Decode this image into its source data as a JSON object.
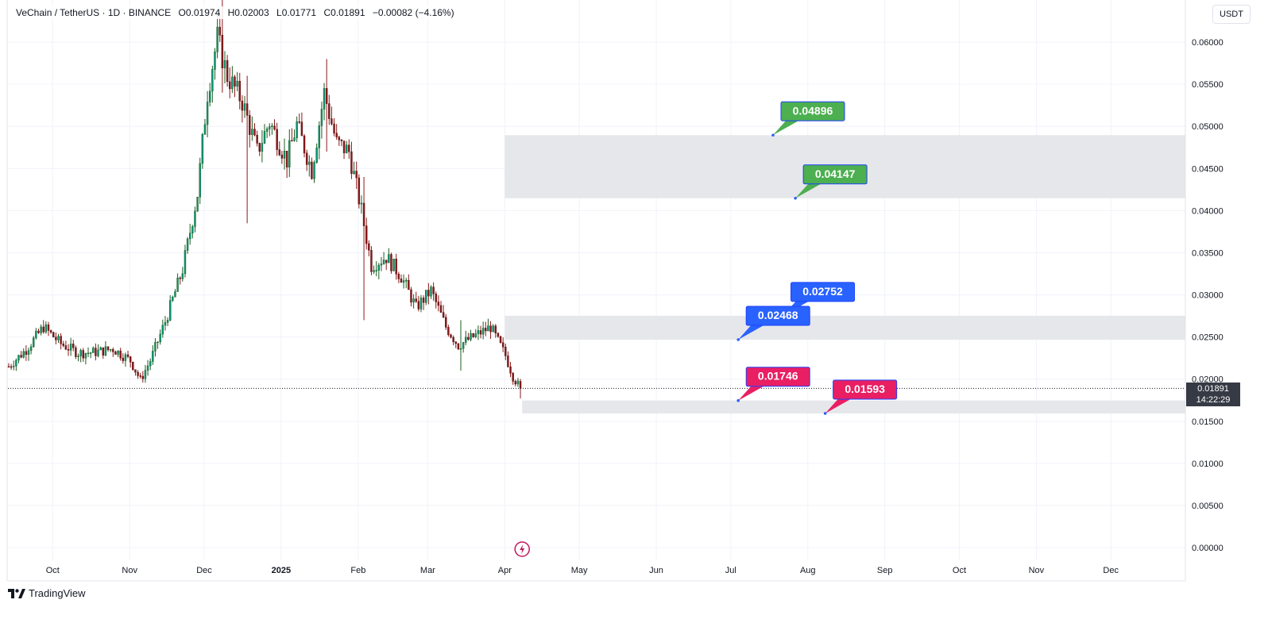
{
  "legend": {
    "symbol": "VeChain / TetherUS · 1D · BINANCE",
    "open_label": "O",
    "open": "0.01974",
    "high_label": "H",
    "high": "0.02003",
    "low_label": "L",
    "low": "0.01771",
    "close_label": "C",
    "close": "0.01891",
    "change": "−0.00082 (−4.16%)"
  },
  "currency": "USDT",
  "last_price": {
    "value": "0.01891",
    "countdown": "14:22:29"
  },
  "footer": {
    "brand": "TradingView"
  },
  "colors": {
    "up": "#089981",
    "down": "#f23645",
    "candle_body_down": "#8b1a1a",
    "zone": "#e6e7ea",
    "green_label": "#4caf50",
    "blue_label": "#2962ff",
    "pink_label": "#e91e63",
    "grid": "#f0f3fa",
    "text": "#131722"
  },
  "chart_data": {
    "type": "candlestick",
    "ylim": [
      -0.0015,
      0.065
    ],
    "yticks": [
      "0.06000",
      "0.05500",
      "0.05000",
      "0.04500",
      "0.04000",
      "0.03500",
      "0.03000",
      "0.02500",
      "0.02000",
      "0.01500",
      "0.01000",
      "0.00500",
      "0.00000"
    ],
    "ytick_values": [
      0.06,
      0.055,
      0.05,
      0.045,
      0.04,
      0.035,
      0.03,
      0.025,
      0.02,
      0.015,
      0.01,
      0.005,
      0.0
    ],
    "xticks": [
      "Oct",
      "Nov",
      "Dec",
      "2025",
      "Feb",
      "Mar",
      "Apr",
      "May",
      "Jun",
      "Jul",
      "Aug",
      "Sep",
      "Oct",
      "Nov",
      "Dec"
    ],
    "xtick_dates": [
      "2024-10-01",
      "2024-11-01",
      "2024-12-01",
      "2025-01-01",
      "2025-02-01",
      "2025-03-01",
      "2025-04-01",
      "2025-05-01",
      "2025-06-01",
      "2025-07-01",
      "2025-08-01",
      "2025-09-01",
      "2025-10-01",
      "2025-11-01",
      "2025-12-01"
    ],
    "date_range": [
      "2024-09-13",
      "2025-12-31"
    ],
    "close_path": [
      [
        "2024-09-13",
        0.0215
      ],
      [
        "2024-09-20",
        0.0235
      ],
      [
        "2024-09-27",
        0.0262
      ],
      [
        "2024-10-04",
        0.0242
      ],
      [
        "2024-10-11",
        0.0231
      ],
      [
        "2024-10-18",
        0.0232
      ],
      [
        "2024-10-25",
        0.0236
      ],
      [
        "2024-11-01",
        0.0222
      ],
      [
        "2024-11-05",
        0.0199
      ],
      [
        "2024-11-09",
        0.0222
      ],
      [
        "2024-11-15",
        0.0268
      ],
      [
        "2024-11-22",
        0.033
      ],
      [
        "2024-11-28",
        0.042
      ],
      [
        "2024-12-02",
        0.054
      ],
      [
        "2024-12-06",
        0.0605
      ],
      [
        "2024-12-10",
        0.056
      ],
      [
        "2024-12-16",
        0.053
      ],
      [
        "2024-12-22",
        0.047
      ],
      [
        "2024-12-27",
        0.0505
      ],
      [
        "2025-01-03",
        0.046
      ],
      [
        "2025-01-07",
        0.0502
      ],
      [
        "2025-01-13",
        0.0448
      ],
      [
        "2025-01-18",
        0.054
      ],
      [
        "2025-01-23",
        0.048
      ],
      [
        "2025-01-28",
        0.047
      ],
      [
        "2025-02-02",
        0.04
      ],
      [
        "2025-02-06",
        0.0335
      ],
      [
        "2025-02-12",
        0.0345
      ],
      [
        "2025-02-18",
        0.0322
      ],
      [
        "2025-02-24",
        0.0285
      ],
      [
        "2025-03-02",
        0.0305
      ],
      [
        "2025-03-08",
        0.0262
      ],
      [
        "2025-03-13",
        0.024
      ],
      [
        "2025-03-20",
        0.0252
      ],
      [
        "2025-03-26",
        0.0262
      ],
      [
        "2025-04-01",
        0.0228
      ],
      [
        "2025-04-04",
        0.0203
      ],
      [
        "2025-04-07",
        0.0189
      ]
    ],
    "wicks": [
      [
        "2024-12-08",
        0.065,
        0.054
      ],
      [
        "2024-12-18",
        0.056,
        0.0385
      ],
      [
        "2025-01-19",
        0.058,
        0.047
      ],
      [
        "2025-02-03",
        0.044,
        0.027
      ],
      [
        "2025-04-07",
        0.02,
        0.0177
      ],
      [
        "2025-03-14",
        0.027,
        0.021
      ]
    ],
    "zones": [
      {
        "top": 0.04896,
        "bottom": 0.04147,
        "start": "2025-04-01",
        "end": "2025-12-31"
      },
      {
        "top": 0.02752,
        "bottom": 0.02468,
        "start": "2025-04-01",
        "end": "2025-12-31"
      },
      {
        "top": 0.01746,
        "bottom": 0.01593,
        "start": "2025-04-08",
        "end": "2025-12-31"
      }
    ],
    "callouts": [
      {
        "text": "0.04896",
        "value": 0.04896,
        "date": "2025-07-18",
        "style": "green"
      },
      {
        "text": "0.04147",
        "value": 0.04147,
        "date": "2025-07-27",
        "style": "green"
      },
      {
        "text": "0.02752",
        "value": 0.02752,
        "date": "2025-07-22",
        "style": "blue"
      },
      {
        "text": "0.02468",
        "value": 0.02468,
        "date": "2025-07-04",
        "style": "blue"
      },
      {
        "text": "0.01746",
        "value": 0.01746,
        "date": "2025-07-04",
        "style": "pink"
      },
      {
        "text": "0.01593",
        "value": 0.01593,
        "date": "2025-08-08",
        "style": "pink"
      }
    ],
    "last_price_line": 0.01891,
    "event_marker_date": "2025-04-08"
  }
}
